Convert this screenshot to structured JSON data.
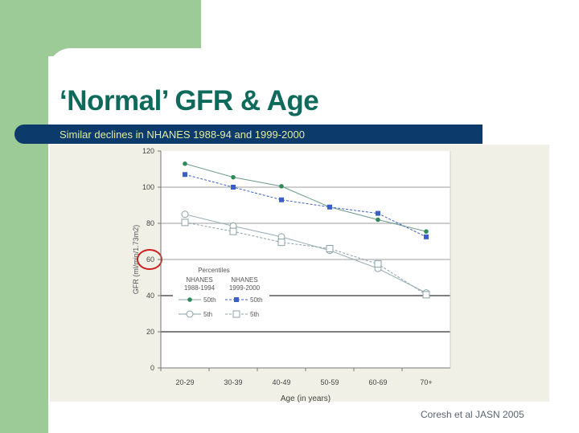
{
  "slide": {
    "title": "‘Normal’ GFR & Age",
    "subtitle": "Similar declines in NHANES 1988-94 and 1999-2000",
    "citation": "Coresh et al JASN 2005",
    "colors": {
      "title": "#0e6b5c",
      "banner": "#0b3a6b",
      "banner_text": "#e3ec9c",
      "accent_green": "#9dcb98",
      "highlight_circle": "#d02020"
    }
  },
  "chart_data": {
    "type": "line",
    "xlabel": "Age (in years)",
    "ylabel": "GFR (ml/min/1.73m2)",
    "categories": [
      "20-29",
      "30-39",
      "40-49",
      "50-59",
      "60-69",
      "70+"
    ],
    "ylim": [
      0,
      120
    ],
    "yticks": [
      "0",
      "20",
      "40",
      "60",
      "80",
      "100",
      "120"
    ],
    "highlighted_tick": "60",
    "grid": true,
    "legend": {
      "title": "Percentiles",
      "group1": [
        "NHANES",
        "1988-1994"
      ],
      "group2": [
        "NHANES",
        "1999-2000"
      ],
      "placement": "center-left"
    },
    "series": [
      {
        "name": "50th",
        "group": "1988-1994",
        "values": [
          113,
          105.5,
          100.5,
          89,
          82,
          75.5
        ],
        "color": "#2e8b57",
        "marker": "filled-circle",
        "dash": false
      },
      {
        "name": "50th",
        "group": "1999-2000",
        "values": [
          107,
          100,
          93,
          89,
          85.5,
          72.5
        ],
        "color": "#3a5fc8",
        "marker": "filled-square",
        "dash": true
      },
      {
        "name": "5th",
        "group": "1988-1994",
        "values": [
          85,
          78.5,
          72.5,
          65,
          55,
          41.5
        ],
        "color": "#8aa0a8",
        "marker": "open-circle",
        "dash": false
      },
      {
        "name": "5th",
        "group": "1999-2000",
        "values": [
          80.5,
          75.5,
          69.5,
          66,
          57.5,
          40.5
        ],
        "color": "#8aa0a8",
        "marker": "open-square",
        "dash": true
      }
    ]
  }
}
